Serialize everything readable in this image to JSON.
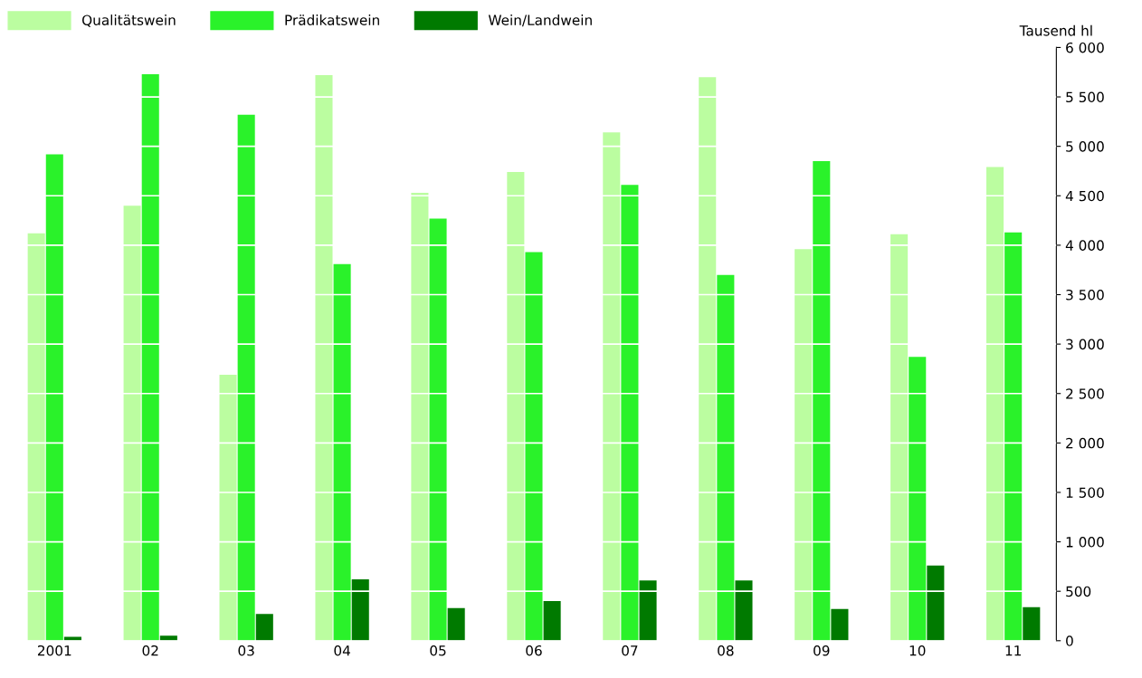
{
  "chart_data": {
    "type": "bar",
    "ylabel": "Tausend hl",
    "categories": [
      "2001",
      "02",
      "03",
      "04",
      "05",
      "06",
      "07",
      "08",
      "09",
      "10",
      "11"
    ],
    "series": [
      {
        "name": "Qualitätswein",
        "color": "#bbfda0",
        "values": [
          4120,
          4400,
          2690,
          5720,
          4530,
          4740,
          5140,
          5700,
          3960,
          4110,
          4790
        ]
      },
      {
        "name": "Prädikatswein",
        "color": "#2af22a",
        "values": [
          4920,
          5730,
          5320,
          3810,
          4270,
          3930,
          4610,
          3700,
          4850,
          2870,
          4130
        ]
      },
      {
        "name": "Wein/Landwein",
        "color": "#007a00",
        "values": [
          40,
          50,
          270,
          620,
          330,
          400,
          610,
          610,
          320,
          760,
          340
        ]
      }
    ],
    "ylim": [
      0,
      6000
    ],
    "yticks": [
      0,
      500,
      {
        "value": 1000,
        "label": "1 000"
      },
      {
        "value": 1500,
        "label": "1 500"
      },
      {
        "value": 2000,
        "label": "2 000"
      },
      {
        "value": 2500,
        "label": "2 500"
      },
      {
        "value": 3000,
        "label": "3 000"
      },
      {
        "value": 3500,
        "label": "3 500"
      },
      {
        "value": 4000,
        "label": "4 000"
      },
      {
        "value": 4500,
        "label": "4 500"
      },
      {
        "value": 5000,
        "label": "5 000"
      },
      {
        "value": 5500,
        "label": "5 500"
      },
      {
        "value": 6000,
        "label": "6 000"
      }
    ],
    "grid": "y",
    "legend": "top left"
  }
}
